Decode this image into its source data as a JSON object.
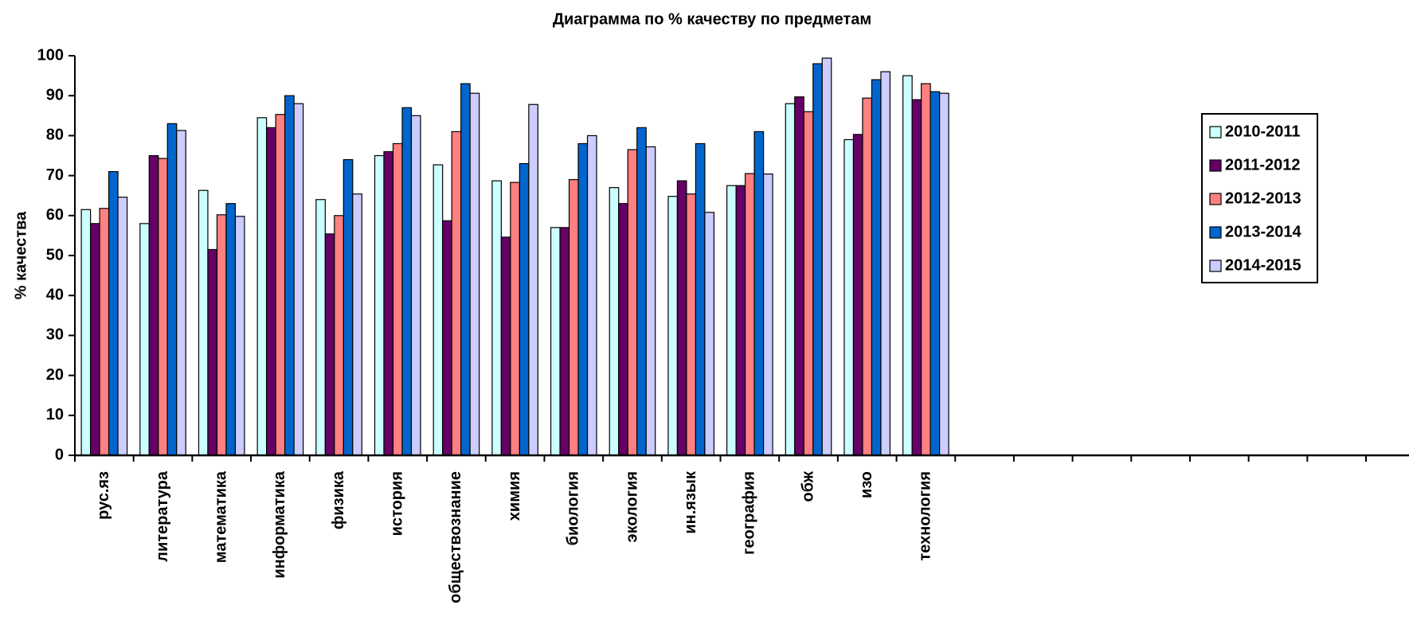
{
  "chart_data": {
    "type": "bar",
    "title": "Диаграмма по % качеству по предметам",
    "y_label": "% качества",
    "categories": [
      "рус.яз",
      "литература",
      "математика",
      "информатика",
      "физика",
      "история",
      "обществознание",
      "химия",
      "биология",
      "экология",
      "ин.язык",
      "география",
      "обж",
      "изо",
      "технология",
      null,
      null,
      null,
      null,
      null,
      null,
      null
    ],
    "series": [
      {
        "name": "2010-2011",
        "color": "#ccffff",
        "values": [
          61.5,
          58,
          66.3,
          84.5,
          64,
          75,
          72.7,
          68.7,
          57,
          67,
          64.8,
          67.5,
          88,
          79,
          95,
          null,
          null,
          null,
          null,
          null,
          null,
          null
        ]
      },
      {
        "name": "2011-2012",
        "color": "#660066",
        "values": [
          58,
          75,
          51.5,
          82,
          55.4,
          76,
          58.7,
          54.6,
          57,
          63,
          68.7,
          67.5,
          89.7,
          80.3,
          89,
          null,
          null,
          null,
          null,
          null,
          null,
          null
        ]
      },
      {
        "name": "2012-2013",
        "color": "#ff8080",
        "values": [
          61.8,
          74.3,
          60.2,
          85.3,
          60,
          78,
          81,
          68.3,
          69,
          76.5,
          65.4,
          70.5,
          86,
          89.4,
          93,
          null,
          null,
          null,
          null,
          null,
          null,
          null
        ]
      },
      {
        "name": "2013-2014",
        "color": "#0066cc",
        "values": [
          71,
          83,
          63,
          90,
          74,
          87,
          93,
          73,
          78,
          82,
          78,
          81,
          98,
          94,
          91,
          null,
          null,
          null,
          null,
          null,
          null,
          null
        ]
      },
      {
        "name": "2014-2015",
        "color": "#ccccff",
        "values": [
          64.6,
          81.3,
          59.8,
          88,
          65.4,
          85,
          90.6,
          87.8,
          80,
          77.2,
          60.8,
          70.4,
          99.4,
          96,
          90.6,
          null,
          null,
          null,
          null,
          null,
          null,
          null
        ]
      }
    ],
    "ylim": [
      0,
      100
    ],
    "yticks": [
      0,
      10,
      20,
      30,
      40,
      50,
      60,
      70,
      80,
      90,
      100
    ],
    "legend": "right"
  }
}
